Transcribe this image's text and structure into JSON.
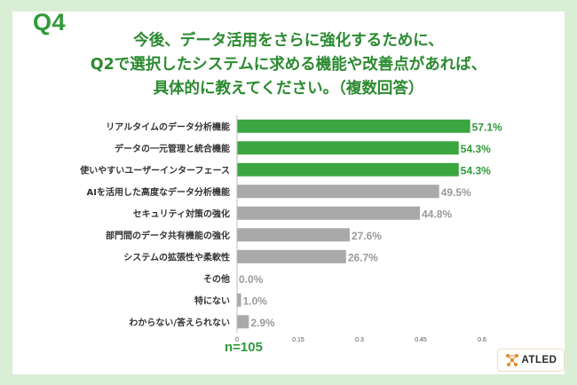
{
  "header": {
    "q_label": "Q4",
    "title_lines": [
      "今後、データ活用をさらに強化するために、",
      "Q2で選択したシステムに求める機能や改善点があれば、",
      "具体的に教えてください。（複数回答）"
    ]
  },
  "sample_size": "n=105",
  "logo": {
    "text": "ATLED",
    "icon": "network-dots-icon"
  },
  "colors": {
    "highlight": "#3aa640",
    "default": "#a9a9a9",
    "highlight_text": "#2f9a3a",
    "default_text": "#9a9a9a"
  },
  "chart_data": {
    "type": "bar",
    "orientation": "horizontal",
    "categories": [
      "リアルタイムのデータ分析機能",
      "データの一元管理と統合機能",
      "使いやすいユーザーインターフェース",
      "AIを活用した高度なデータ分析機能",
      "セキュリティ対策の強化",
      "部門間のデータ共有機能の強化",
      "システムの拡張性や柔軟性",
      "その他",
      "特にない",
      "わからない/答えられない"
    ],
    "values": [
      0.571,
      0.543,
      0.543,
      0.495,
      0.448,
      0.276,
      0.267,
      0.0,
      0.01,
      0.029
    ],
    "value_labels": [
      "57.1%",
      "54.3%",
      "54.3%",
      "49.5%",
      "44.8%",
      "27.6%",
      "26.7%",
      "0.0%",
      "1.0%",
      "2.9%"
    ],
    "highlighted": [
      true,
      true,
      true,
      false,
      false,
      false,
      false,
      false,
      false,
      false
    ],
    "xlim": [
      0,
      0.6
    ],
    "xticks": [
      "0",
      "0.15",
      "0.3",
      "0.45",
      "0.6"
    ],
    "xtick_values": [
      0,
      0.15,
      0.3,
      0.45,
      0.6
    ],
    "grid": false
  }
}
